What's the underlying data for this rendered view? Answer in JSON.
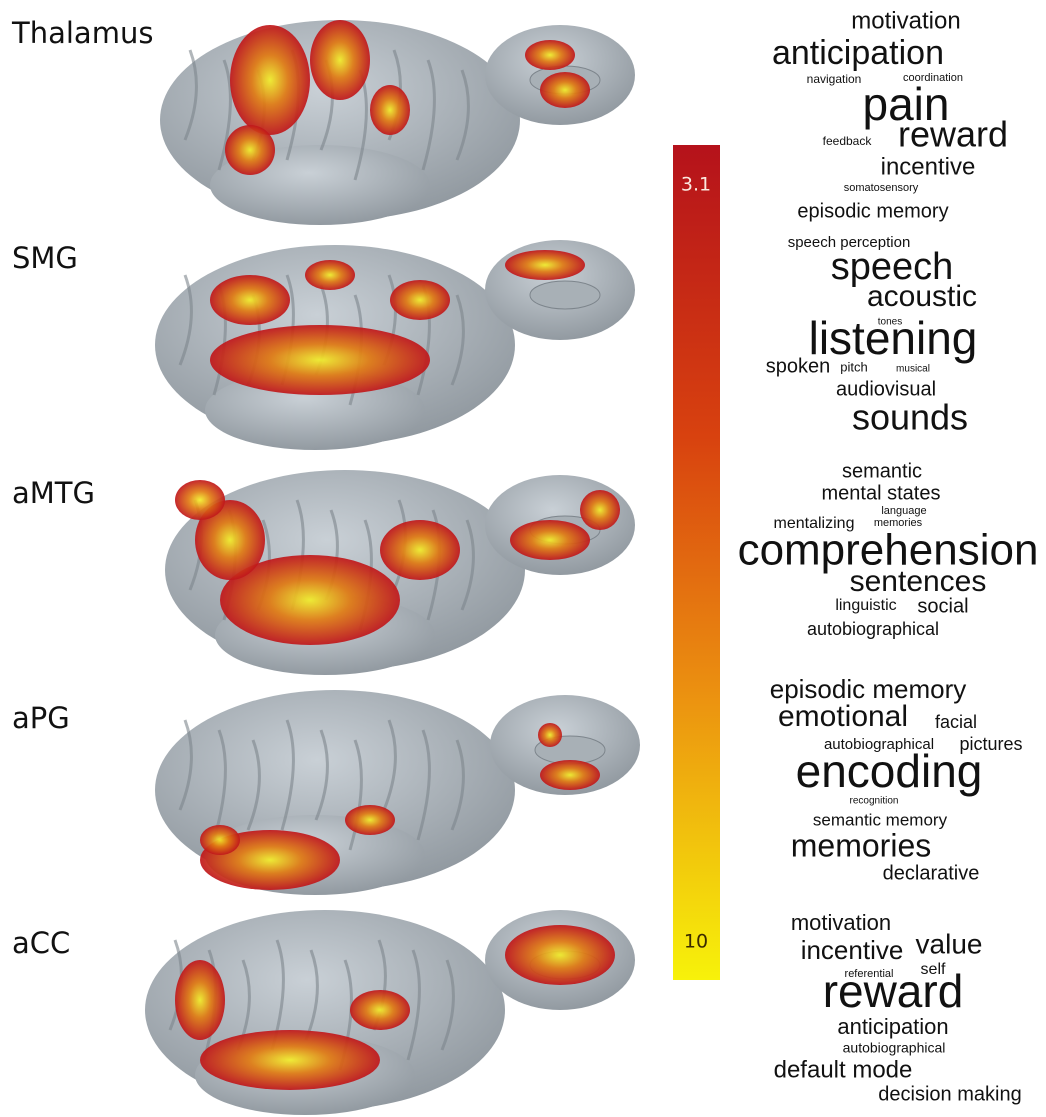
{
  "figure": {
    "rows": [
      {
        "label": "Thalamus",
        "words": [
          "motivation",
          "anticipation",
          "navigation",
          "coordination",
          "pain",
          "feedback",
          "reward",
          "incentive",
          "somatosensory",
          "episodic memory"
        ]
      },
      {
        "label": "SMG",
        "words": [
          "speech perception",
          "speech",
          "acoustic",
          "tones",
          "listening",
          "spoken",
          "pitch",
          "musical",
          "audiovisual",
          "sounds"
        ]
      },
      {
        "label": "aMTG",
        "words": [
          "semantic",
          "mental states",
          "language",
          "mentalizing",
          "memories",
          "comprehension",
          "sentences",
          "linguistic",
          "social",
          "autobiographical"
        ]
      },
      {
        "label": "aPG",
        "words": [
          "episodic memory",
          "emotional",
          "facial",
          "autobiographical",
          "pictures",
          "encoding",
          "recognition",
          "semantic memory",
          "memories",
          "declarative"
        ]
      },
      {
        "label": "aCC",
        "words": [
          "motivation",
          "incentive",
          "value",
          "referential",
          "self",
          "reward",
          "anticipation",
          "autobiographical",
          "default mode",
          "decision making"
        ]
      }
    ],
    "colorbar": {
      "ticks": [
        3.1,
        10
      ]
    }
  }
}
